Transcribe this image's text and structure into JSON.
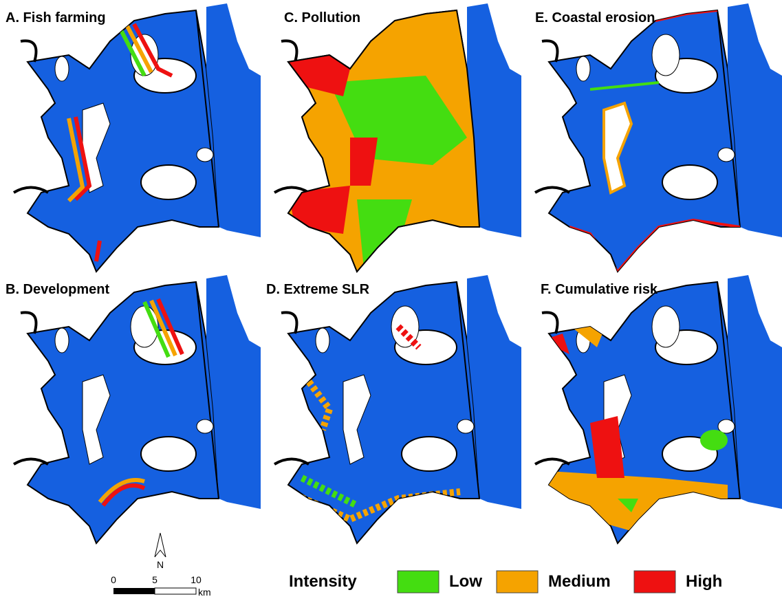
{
  "panels": [
    {
      "label": "A. Fish farming"
    },
    {
      "label": "B. Development"
    },
    {
      "label": "C.  Pollution"
    },
    {
      "label": "D. Extreme SLR"
    },
    {
      "label": "E. Coastal erosion"
    },
    {
      "label": "F. Cumulative risk"
    }
  ],
  "legend": {
    "title": "Intensity",
    "items": [
      {
        "label": "Low",
        "color": "#44dd11"
      },
      {
        "label": "Medium",
        "color": "#f5a300"
      },
      {
        "label": "High",
        "color": "#ee1111"
      }
    ]
  },
  "scale_bar": {
    "ticks": [
      "0",
      "5",
      "10"
    ],
    "unit": "km"
  },
  "north_arrow": {
    "label": "N"
  }
}
